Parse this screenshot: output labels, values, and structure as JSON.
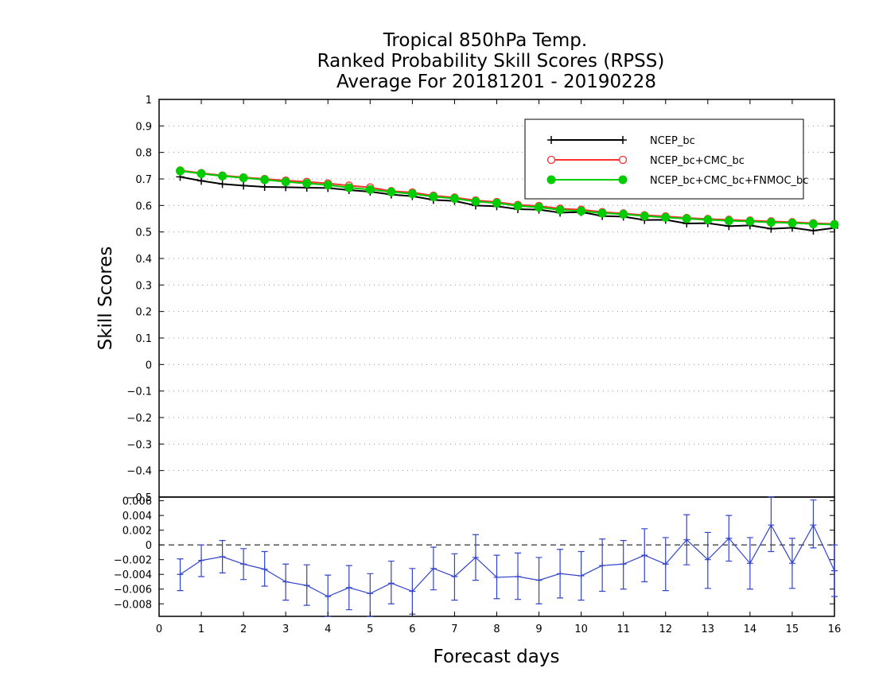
{
  "chart_data": [
    {
      "type": "line",
      "title": [
        "Tropical 850hPa Temp.",
        "Ranked Probability Skill Scores (RPSS)",
        "Average For 20181201 - 20190228"
      ],
      "xlabel": "Forecast days",
      "ylabel": "Skill Scores",
      "xlim": [
        0,
        16
      ],
      "ylim": [
        -0.5,
        1
      ],
      "xticks": [
        "0",
        "1",
        "2",
        "3",
        "4",
        "5",
        "6",
        "7",
        "8",
        "9",
        "10",
        "11",
        "12",
        "13",
        "14",
        "15",
        "16"
      ],
      "yticks": [
        "1",
        "0.9",
        "0.8",
        "0.7",
        "0.6",
        "0.5",
        "0.4",
        "0.3",
        "0.2",
        "0.1",
        "0",
        "−0.1",
        "−0.2",
        "−0.3",
        "−0.4",
        "−0.5"
      ],
      "grid": true,
      "legend_position": "top-right",
      "x": [
        0.5,
        1,
        1.5,
        2,
        2.5,
        3,
        3.5,
        4,
        4.5,
        5,
        5.5,
        6,
        6.5,
        7,
        7.5,
        8,
        8.5,
        9,
        9.5,
        10,
        10.5,
        11,
        11.5,
        12,
        12.5,
        13,
        13.5,
        14,
        14.5,
        15,
        15.5,
        16
      ],
      "series": [
        {
          "name": "NCEP_bc",
          "color": "#000000",
          "marker": "plus",
          "values": [
            0.708,
            0.693,
            0.681,
            0.675,
            0.67,
            0.669,
            0.667,
            0.666,
            0.658,
            0.652,
            0.641,
            0.635,
            0.621,
            0.617,
            0.6,
            0.597,
            0.586,
            0.584,
            0.573,
            0.575,
            0.56,
            0.558,
            0.545,
            0.546,
            0.532,
            0.533,
            0.522,
            0.525,
            0.512,
            0.516,
            0.505,
            0.515
          ]
        },
        {
          "name": "NCEP_bc+CMC_bc",
          "color": "#ff3030",
          "marker": "open-circle",
          "values": [
            0.732,
            0.722,
            0.713,
            0.706,
            0.7,
            0.694,
            0.689,
            0.683,
            0.675,
            0.668,
            0.654,
            0.649,
            0.637,
            0.63,
            0.619,
            0.613,
            0.602,
            0.598,
            0.588,
            0.584,
            0.575,
            0.57,
            0.563,
            0.559,
            0.553,
            0.549,
            0.546,
            0.543,
            0.54,
            0.537,
            0.533,
            0.53
          ]
        },
        {
          "name": "NCEP_bc+CMC_bc+FNMOC_bc",
          "color": "#00cc00",
          "marker": "filled-circle",
          "values": [
            0.73,
            0.72,
            0.711,
            0.704,
            0.697,
            0.689,
            0.683,
            0.677,
            0.667,
            0.66,
            0.651,
            0.644,
            0.633,
            0.626,
            0.615,
            0.609,
            0.598,
            0.593,
            0.583,
            0.579,
            0.571,
            0.567,
            0.56,
            0.555,
            0.55,
            0.546,
            0.542,
            0.54,
            0.536,
            0.534,
            0.53,
            0.528
          ]
        }
      ]
    },
    {
      "type": "line",
      "ylim": [
        -0.0097,
        0.0065
      ],
      "yticks": [
        "0.006",
        "0.004",
        "0.002",
        "0",
        "−0.002",
        "−0.004",
        "−0.006",
        "−0.008"
      ],
      "zero_line": "dashed",
      "x": [
        0.5,
        1,
        1.5,
        2,
        2.5,
        3,
        3.5,
        4,
        4.5,
        5,
        5.5,
        6,
        6.5,
        7,
        7.5,
        8,
        8.5,
        9,
        9.5,
        10,
        10.5,
        11,
        11.5,
        12,
        12.5,
        13,
        13.5,
        14,
        14.5,
        15,
        15.5,
        16
      ],
      "series": [
        {
          "name": "",
          "color": "#3344cc",
          "marker": "plus",
          "error_bars": true,
          "values": [
            -0.004,
            -0.0021,
            -0.0016,
            -0.0026,
            -0.0033,
            -0.005,
            -0.0055,
            -0.007,
            -0.0058,
            -0.0066,
            -0.0052,
            -0.0063,
            -0.0032,
            -0.0043,
            -0.0017,
            -0.0044,
            -0.0043,
            -0.0048,
            -0.0039,
            -0.0042,
            -0.0028,
            -0.0026,
            -0.0014,
            -0.0026,
            0.0007,
            -0.002,
            0.0009,
            -0.0025,
            0.0027,
            -0.0025,
            0.0027,
            -0.0035
          ],
          "lower": [
            -0.0062,
            -0.0043,
            -0.0038,
            -0.0047,
            -0.0056,
            -0.0075,
            -0.0082,
            -0.0097,
            -0.0088,
            -0.0097,
            -0.008,
            -0.0094,
            -0.0061,
            -0.0075,
            -0.0048,
            -0.0073,
            -0.0074,
            -0.008,
            -0.0072,
            -0.0075,
            -0.0063,
            -0.006,
            -0.005,
            -0.0062,
            -0.0027,
            -0.0059,
            -0.0022,
            -0.006,
            -0.0009,
            -0.0059,
            -0.0004,
            -0.007
          ],
          "upper": [
            -0.0019,
            0.0,
            0.0006,
            -0.0005,
            -0.0009,
            -0.0026,
            -0.0027,
            -0.0041,
            -0.0028,
            -0.0039,
            -0.0022,
            -0.0032,
            -0.0003,
            -0.0012,
            0.0014,
            -0.0014,
            -0.0011,
            -0.0017,
            -0.0006,
            -0.0009,
            0.0008,
            0.0006,
            0.0022,
            0.001,
            0.0041,
            0.0017,
            0.004,
            0.001,
            0.0065,
            0.0009,
            0.0061,
            0.0
          ]
        }
      ]
    }
  ]
}
